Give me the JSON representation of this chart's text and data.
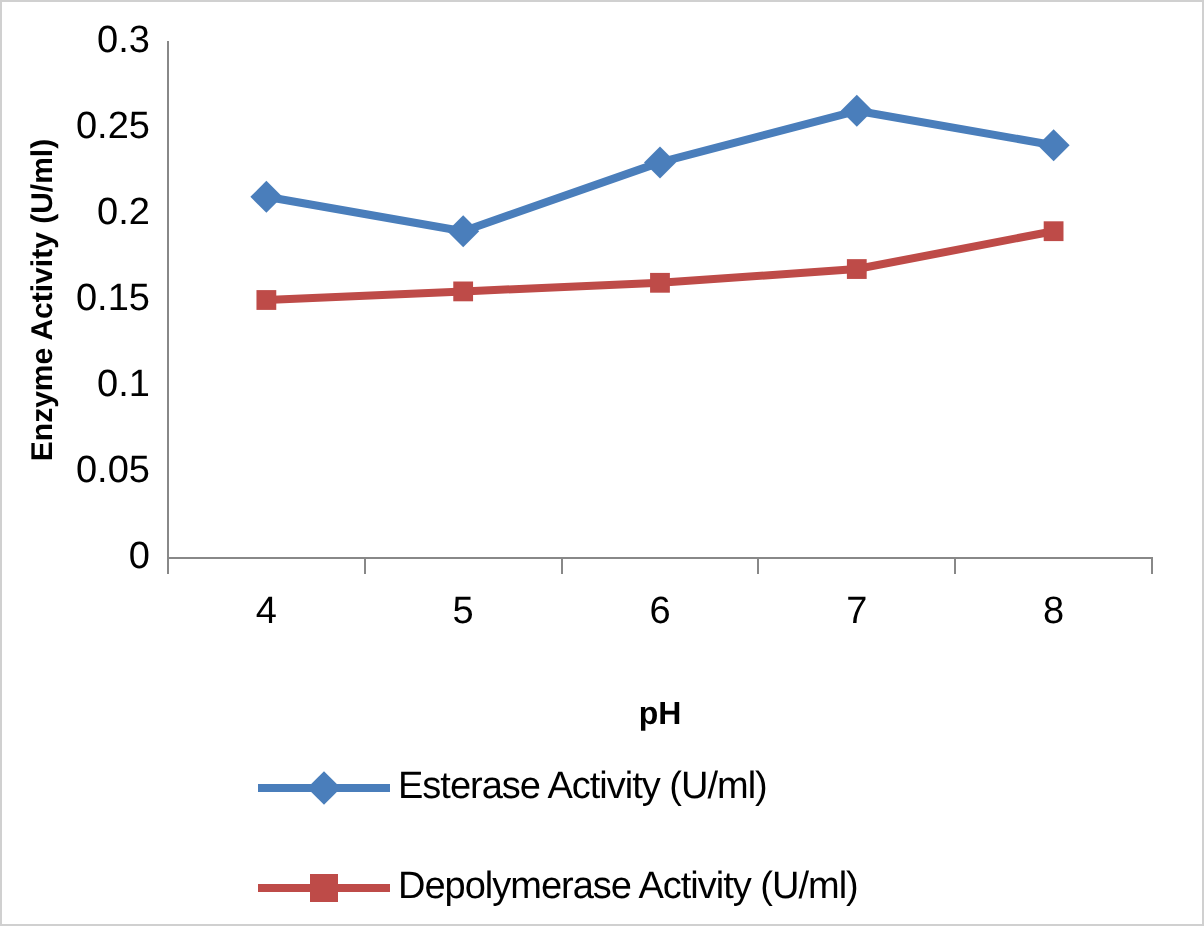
{
  "chart_data": {
    "type": "line",
    "xlabel": "pH",
    "ylabel": "Enzyme Activity (U/ml)",
    "categories": [
      "4",
      "5",
      "6",
      "7",
      "8"
    ],
    "series": [
      {
        "name": "Esterase Activity (U/ml)",
        "color": "#4a7ebb",
        "marker": "diamond",
        "values": [
          0.21,
          0.19,
          0.23,
          0.26,
          0.24
        ]
      },
      {
        "name": "Depolymerase Activity (U/ml)",
        "color": "#be4b48",
        "marker": "square",
        "values": [
          0.15,
          0.155,
          0.16,
          0.168,
          0.19
        ]
      }
    ],
    "ylim": [
      0,
      0.3
    ],
    "yticks": [
      0,
      0.05,
      0.1,
      0.15,
      0.2,
      0.25,
      0.3
    ],
    "grid": false,
    "legend": "bottom"
  }
}
